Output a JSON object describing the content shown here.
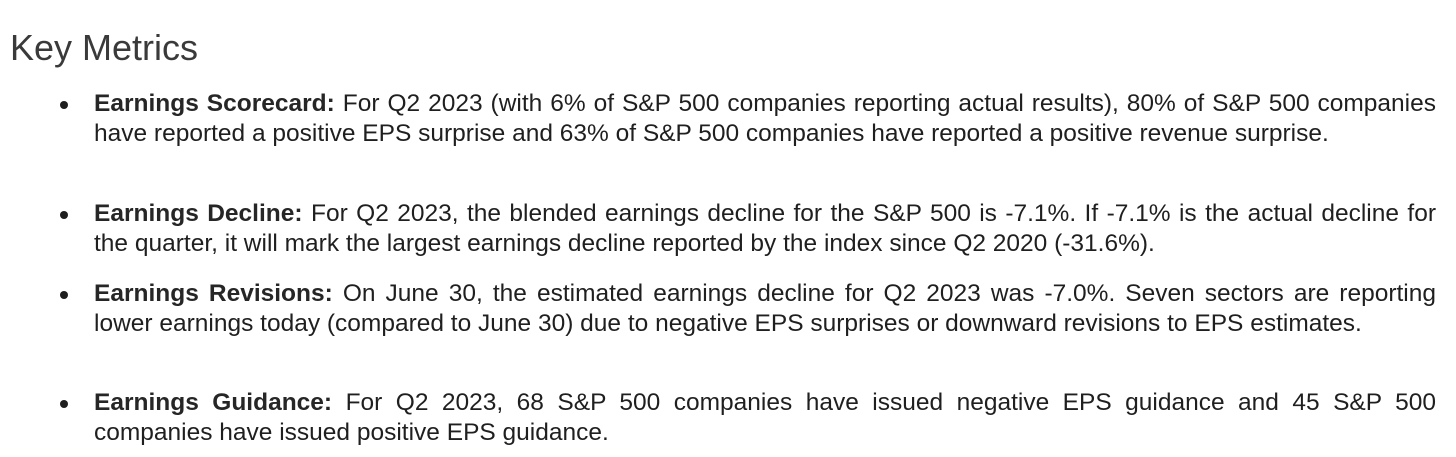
{
  "page": {
    "title": "Key Metrics"
  },
  "metrics": [
    {
      "label": "Earnings Scorecard:",
      "text": "For Q2 2023 (with 6% of S&P 500 companies reporting actual results), 80% of S&P 500 companies have reported a positive EPS surprise and 63% of S&P 500 companies have reported a positive revenue surprise."
    },
    {
      "label": "Earnings Decline:",
      "text": "For Q2 2023, the blended earnings decline for the S&P 500 is -7.1%. If -7.1% is the actual decline for the quarter, it will mark the largest earnings decline reported by the index since Q2 2020 (-31.6%)."
    },
    {
      "label": "Earnings Revisions:",
      "text": "On June 30, the estimated earnings decline for Q2 2023 was -7.0%. Seven sectors are reporting lower earnings today (compared to June 30) due to negative EPS surprises or downward revisions to EPS estimates."
    },
    {
      "label": "Earnings Guidance:",
      "text": "For Q2 2023, 68 S&P 500 companies have issued negative EPS guidance and 45 S&P 500 companies have issued positive EPS guidance."
    }
  ]
}
